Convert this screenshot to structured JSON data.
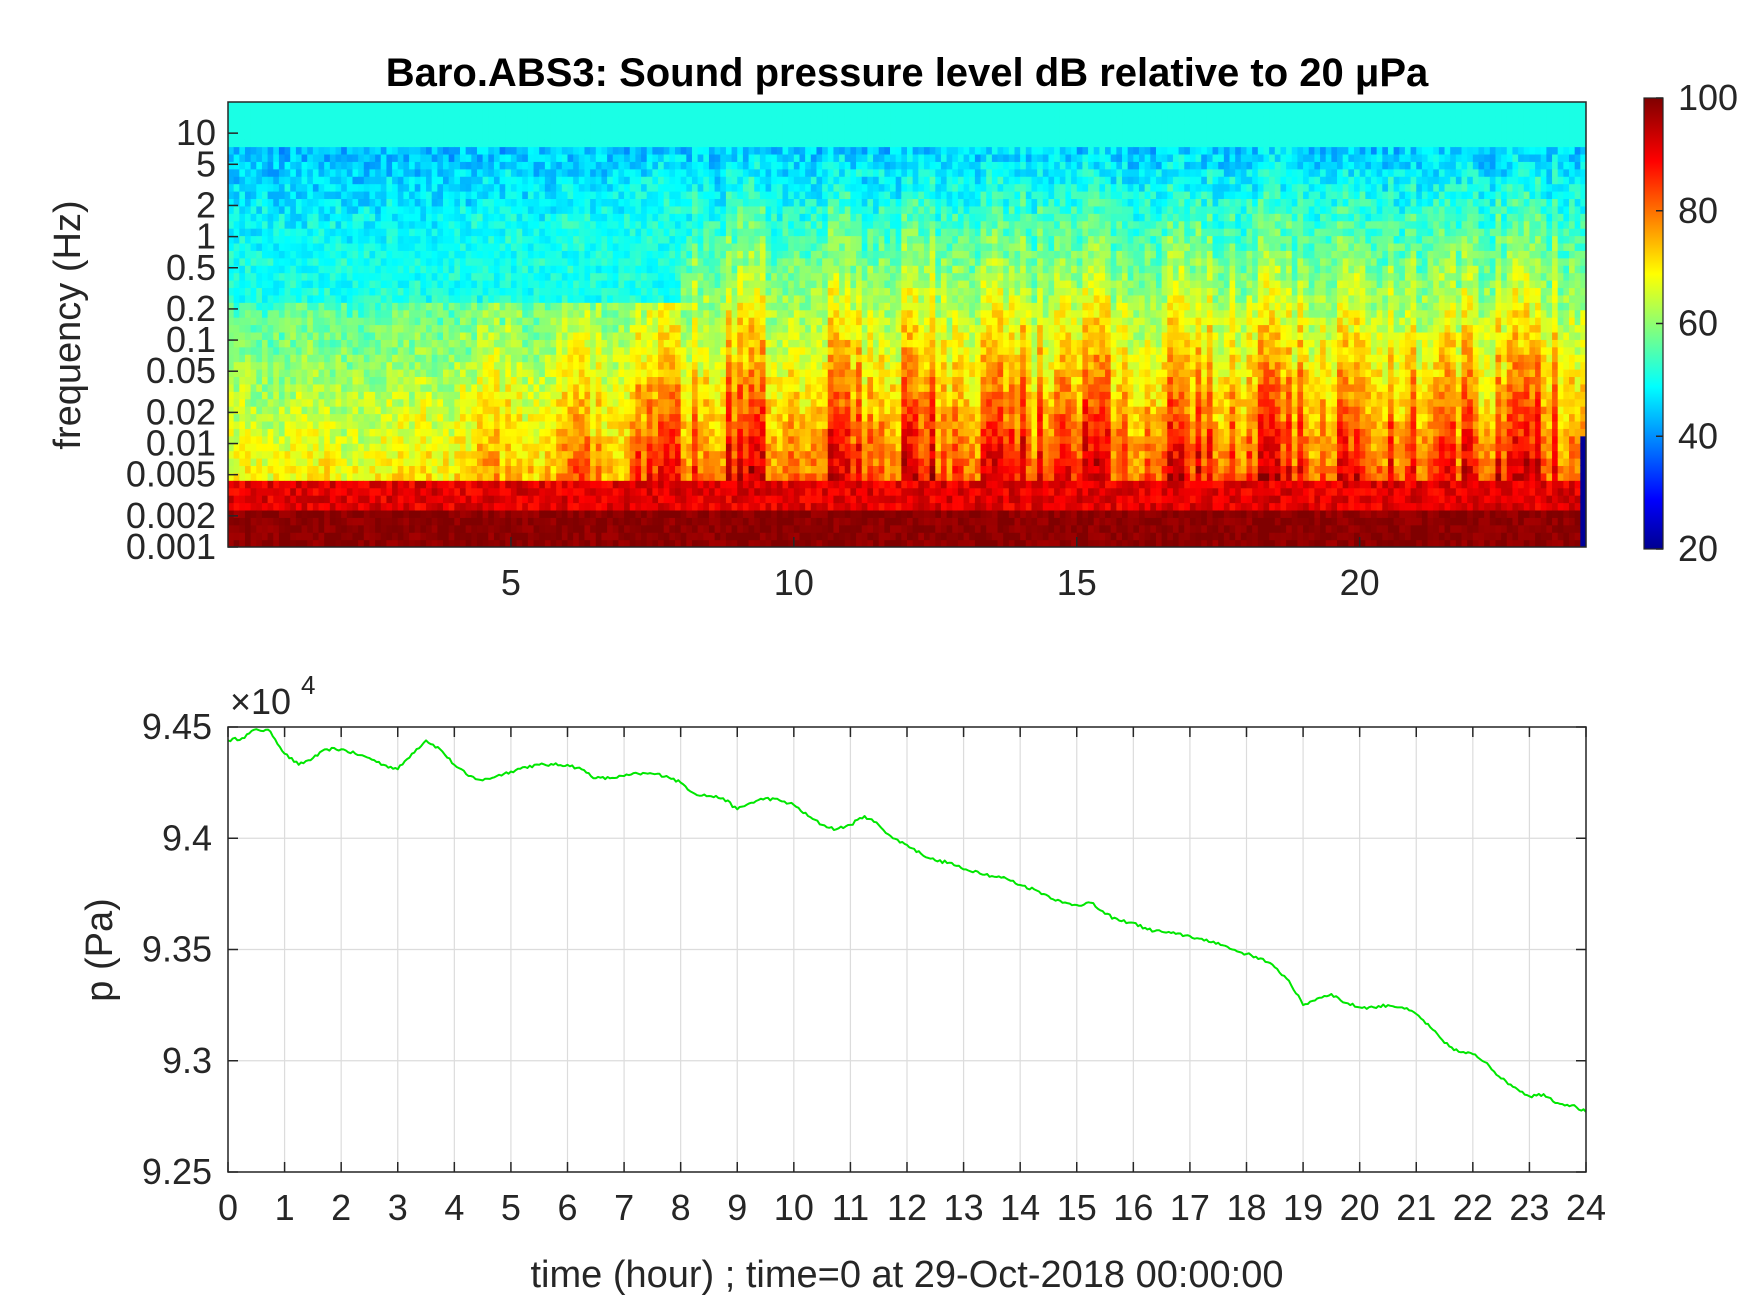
{
  "chart_data": [
    {
      "type": "heatmap",
      "title": "Baro.ABS3: Sound pressure level dB relative to 20 μPa",
      "ylabel": "frequency (Hz)",
      "xlabel": "",
      "xlim": [
        0,
        24
      ],
      "ylim": [
        0.001,
        20
      ],
      "yscale": "log",
      "x_ticks": [
        5,
        10,
        15,
        20
      ],
      "y_ticks": [
        10,
        5,
        2,
        1,
        0.5,
        0.2,
        0.1,
        0.05,
        0.02,
        0.01,
        0.005,
        0.002,
        0.001
      ],
      "y_tick_labels": [
        "10",
        "5",
        "2",
        "1",
        "0.5",
        "0.2",
        "0.1",
        "0.05",
        "0.02",
        "0.01",
        "0.005",
        "0.002",
        "0.001"
      ],
      "colormap": "jet",
      "colorbar": {
        "min": 20,
        "max": 100,
        "ticks": [
          100,
          80,
          60,
          40,
          20
        ]
      },
      "grid": false
    },
    {
      "type": "line",
      "xlabel": "time (hour) ; time=0 at 29-Oct-2018 00:00:00",
      "ylabel": "p (Pa)",
      "xlim": [
        0,
        24
      ],
      "ylim": [
        92500,
        94500
      ],
      "y_multiplier_label": "×10",
      "y_multiplier_exponent": "4",
      "x_ticks": [
        0,
        1,
        2,
        3,
        4,
        5,
        6,
        7,
        8,
        9,
        10,
        11,
        12,
        13,
        14,
        15,
        16,
        17,
        18,
        19,
        20,
        21,
        22,
        23,
        24
      ],
      "y_ticks": [
        9.25,
        9.3,
        9.35,
        9.4,
        9.45
      ],
      "y_tick_labels": [
        "9.25",
        "9.3",
        "9.35",
        "9.4",
        "9.45"
      ],
      "grid": true,
      "series": [
        {
          "color": "#00e600",
          "x": [
            0,
            0.25,
            0.5,
            0.75,
            1,
            1.25,
            1.5,
            1.75,
            2,
            2.25,
            2.5,
            2.75,
            3,
            3.25,
            3.5,
            3.75,
            4,
            4.25,
            4.5,
            4.75,
            5,
            5.25,
            5.5,
            5.75,
            6,
            6.25,
            6.5,
            6.75,
            7,
            7.25,
            7.5,
            7.75,
            8,
            8.25,
            8.5,
            8.75,
            9,
            9.25,
            9.5,
            9.75,
            10,
            10.25,
            10.5,
            10.75,
            11,
            11.25,
            11.5,
            11.75,
            12,
            12.25,
            12.5,
            12.75,
            13,
            13.25,
            13.5,
            13.75,
            14,
            14.25,
            14.5,
            14.75,
            15,
            15.25,
            15.5,
            15.75,
            16,
            16.25,
            16.5,
            16.75,
            17,
            17.25,
            17.5,
            17.75,
            18,
            18.25,
            18.5,
            18.75,
            19,
            19.25,
            19.5,
            19.75,
            20,
            20.25,
            20.5,
            20.75,
            21,
            21.25,
            21.5,
            21.75,
            22,
            22.25,
            22.5,
            22.75,
            23,
            23.25,
            23.5,
            23.75,
            24
          ],
          "y": [
            94440,
            94450,
            94490,
            94480,
            94380,
            94330,
            94360,
            94400,
            94400,
            94380,
            94360,
            94330,
            94310,
            94380,
            94440,
            94400,
            94330,
            94280,
            94260,
            94280,
            94300,
            94320,
            94330,
            94330,
            94330,
            94310,
            94270,
            94270,
            94280,
            94290,
            94290,
            94280,
            94250,
            94200,
            94190,
            94180,
            94130,
            94160,
            94180,
            94170,
            94150,
            94100,
            94060,
            94040,
            94060,
            94100,
            94060,
            94000,
            93970,
            93930,
            93900,
            93890,
            93860,
            93850,
            93830,
            93820,
            93790,
            93770,
            93740,
            93710,
            93700,
            93710,
            93660,
            93630,
            93620,
            93590,
            93580,
            93570,
            93560,
            93540,
            93530,
            93500,
            93480,
            93460,
            93420,
            93360,
            93250,
            93280,
            93300,
            93260,
            93240,
            93240,
            93250,
            93240,
            93210,
            93150,
            93080,
            93040,
            93030,
            92990,
            92920,
            92880,
            92840,
            92850,
            92810,
            92800,
            92770
          ]
        }
      ]
    }
  ]
}
